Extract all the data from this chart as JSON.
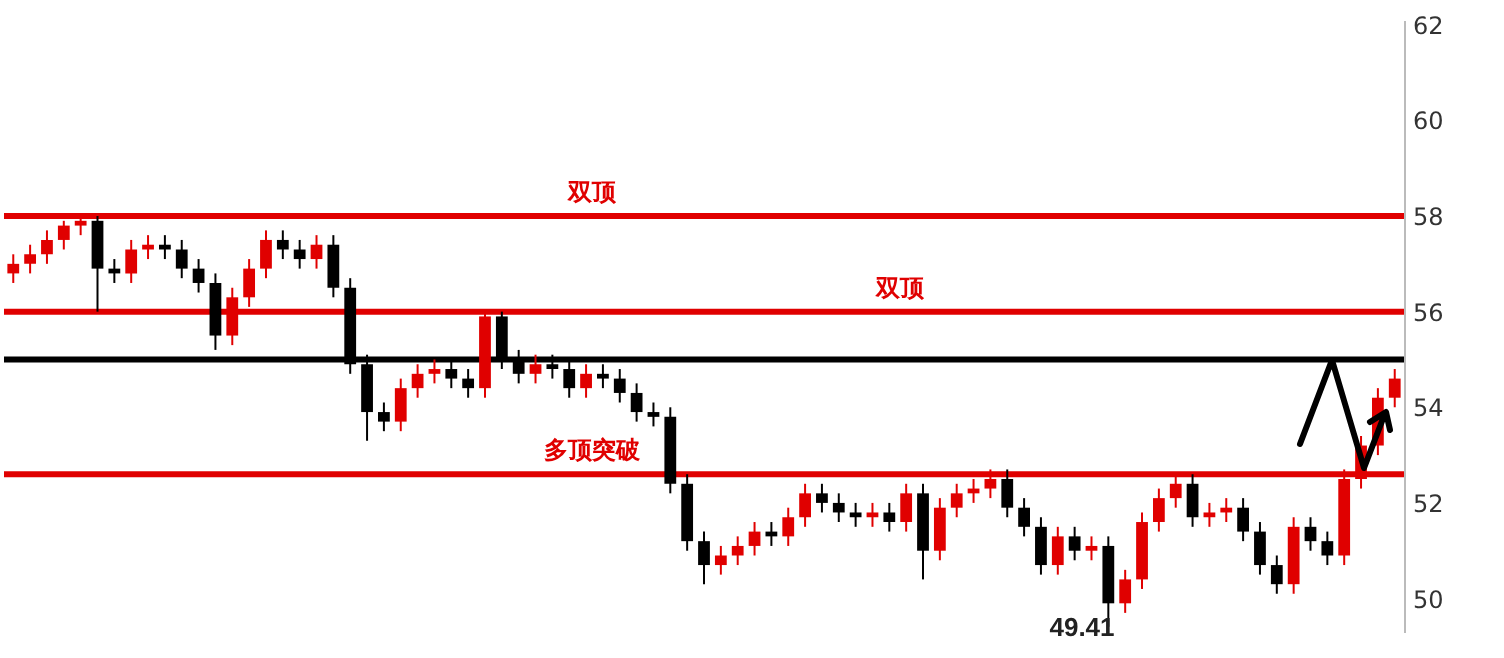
{
  "chart_data": {
    "type": "candlestick",
    "categories": [
      null,
      null,
      null,
      null,
      null,
      null,
      null,
      null,
      null,
      null,
      null,
      null,
      null,
      null,
      null,
      null,
      null,
      null,
      null,
      null,
      null,
      null,
      null,
      null,
      null,
      null,
      null,
      null,
      null,
      null,
      null,
      null,
      null,
      null,
      null,
      null,
      null,
      null,
      null,
      null,
      null,
      null,
      null,
      null,
      null,
      null,
      null,
      null,
      null,
      null,
      null,
      null,
      null,
      null,
      null,
      null,
      null,
      null,
      null,
      null,
      null,
      null,
      null,
      null,
      null,
      null,
      null,
      null,
      null,
      null,
      null,
      null,
      null,
      null,
      null,
      null,
      null,
      null,
      null,
      null,
      null,
      null,
      null
    ],
    "ohlc": [
      [
        56.8,
        57.2,
        56.6,
        57.0
      ],
      [
        57.0,
        57.4,
        56.8,
        57.2
      ],
      [
        57.2,
        57.7,
        57.0,
        57.5
      ],
      [
        57.5,
        57.9,
        57.3,
        57.8
      ],
      [
        57.8,
        58.0,
        57.6,
        57.9
      ],
      [
        57.9,
        58.0,
        56.0,
        56.9
      ],
      [
        56.9,
        57.1,
        56.6,
        56.8
      ],
      [
        56.8,
        57.5,
        56.6,
        57.3
      ],
      [
        57.3,
        57.6,
        57.1,
        57.4
      ],
      [
        57.4,
        57.6,
        57.1,
        57.3
      ],
      [
        57.3,
        57.5,
        56.7,
        56.9
      ],
      [
        56.9,
        57.1,
        56.4,
        56.6
      ],
      [
        56.6,
        56.8,
        55.2,
        55.5
      ],
      [
        55.5,
        56.5,
        55.3,
        56.3
      ],
      [
        56.3,
        57.1,
        56.1,
        56.9
      ],
      [
        56.9,
        57.7,
        56.7,
        57.5
      ],
      [
        57.5,
        57.7,
        57.1,
        57.3
      ],
      [
        57.3,
        57.5,
        56.9,
        57.1
      ],
      [
        57.1,
        57.6,
        56.9,
        57.4
      ],
      [
        57.4,
        57.6,
        56.3,
        56.5
      ],
      [
        56.5,
        56.7,
        54.7,
        54.9
      ],
      [
        54.9,
        55.1,
        53.3,
        53.9
      ],
      [
        53.9,
        54.1,
        53.5,
        53.7
      ],
      [
        53.7,
        54.6,
        53.5,
        54.4
      ],
      [
        54.4,
        54.9,
        54.2,
        54.7
      ],
      [
        54.7,
        55.0,
        54.5,
        54.8
      ],
      [
        54.8,
        55.0,
        54.4,
        54.6
      ],
      [
        54.6,
        54.8,
        54.2,
        54.4
      ],
      [
        54.4,
        56.0,
        54.2,
        55.9
      ],
      [
        55.9,
        56.0,
        54.8,
        55.0
      ],
      [
        55.0,
        55.2,
        54.5,
        54.7
      ],
      [
        54.7,
        55.1,
        54.5,
        54.9
      ],
      [
        54.9,
        55.1,
        54.6,
        54.8
      ],
      [
        54.8,
        55.0,
        54.2,
        54.4
      ],
      [
        54.4,
        54.9,
        54.2,
        54.7
      ],
      [
        54.7,
        54.9,
        54.4,
        54.6
      ],
      [
        54.6,
        54.8,
        54.1,
        54.3
      ],
      [
        54.3,
        54.5,
        53.7,
        53.9
      ],
      [
        53.9,
        54.1,
        53.6,
        53.8
      ],
      [
        53.8,
        54.0,
        52.2,
        52.4
      ],
      [
        52.4,
        52.6,
        51.0,
        51.2
      ],
      [
        51.2,
        51.4,
        50.3,
        50.7
      ],
      [
        50.7,
        51.1,
        50.5,
        50.9
      ],
      [
        50.9,
        51.3,
        50.7,
        51.1
      ],
      [
        51.1,
        51.6,
        50.9,
        51.4
      ],
      [
        51.4,
        51.6,
        51.1,
        51.3
      ],
      [
        51.3,
        51.9,
        51.1,
        51.7
      ],
      [
        51.7,
        52.4,
        51.5,
        52.2
      ],
      [
        52.2,
        52.4,
        51.8,
        52.0
      ],
      [
        52.0,
        52.2,
        51.6,
        51.8
      ],
      [
        51.8,
        52.0,
        51.5,
        51.7
      ],
      [
        51.7,
        52.0,
        51.5,
        51.8
      ],
      [
        51.8,
        52.0,
        51.4,
        51.6
      ],
      [
        51.6,
        52.4,
        51.4,
        52.2
      ],
      [
        52.2,
        52.4,
        50.4,
        51.0
      ],
      [
        51.0,
        52.1,
        50.8,
        51.9
      ],
      [
        51.9,
        52.4,
        51.7,
        52.2
      ],
      [
        52.2,
        52.5,
        52.0,
        52.3
      ],
      [
        52.3,
        52.7,
        52.1,
        52.5
      ],
      [
        52.5,
        52.7,
        51.7,
        51.9
      ],
      [
        51.9,
        52.1,
        51.3,
        51.5
      ],
      [
        51.5,
        51.7,
        50.5,
        50.7
      ],
      [
        50.7,
        51.5,
        50.5,
        51.3
      ],
      [
        51.3,
        51.5,
        50.8,
        51.0
      ],
      [
        51.0,
        51.3,
        50.8,
        51.1
      ],
      [
        51.1,
        51.3,
        49.41,
        49.9
      ],
      [
        49.9,
        50.6,
        49.7,
        50.4
      ],
      [
        50.4,
        51.8,
        50.2,
        51.6
      ],
      [
        51.6,
        52.3,
        51.4,
        52.1
      ],
      [
        52.1,
        52.6,
        51.9,
        52.4
      ],
      [
        52.4,
        52.6,
        51.5,
        51.7
      ],
      [
        51.7,
        52.0,
        51.5,
        51.8
      ],
      [
        51.8,
        52.1,
        51.6,
        51.9
      ],
      [
        51.9,
        52.1,
        51.2,
        51.4
      ],
      [
        51.4,
        51.6,
        50.5,
        50.7
      ],
      [
        50.7,
        50.9,
        50.1,
        50.3
      ],
      [
        50.3,
        51.7,
        50.1,
        51.5
      ],
      [
        51.5,
        51.7,
        51.0,
        51.2
      ],
      [
        51.2,
        51.4,
        50.7,
        50.9
      ],
      [
        50.9,
        52.7,
        50.7,
        52.5
      ],
      [
        52.5,
        53.4,
        52.3,
        53.2
      ],
      [
        53.2,
        54.4,
        53.0,
        54.2
      ],
      [
        54.2,
        54.8,
        54.0,
        54.6
      ]
    ],
    "colors": [
      "#e00000",
      "#e00000",
      "#e00000",
      "#e00000",
      "#e00000",
      "#000000",
      "#000000",
      "#e00000",
      "#e00000",
      "#000000",
      "#000000",
      "#000000",
      "#000000",
      "#e00000",
      "#e00000",
      "#e00000",
      "#000000",
      "#000000",
      "#e00000",
      "#000000",
      "#000000",
      "#000000",
      "#000000",
      "#e00000",
      "#e00000",
      "#e00000",
      "#000000",
      "#000000",
      "#e00000",
      "#000000",
      "#000000",
      "#e00000",
      "#000000",
      "#000000",
      "#e00000",
      "#000000",
      "#000000",
      "#000000",
      "#000000",
      "#000000",
      "#000000",
      "#000000",
      "#e00000",
      "#e00000",
      "#e00000",
      "#000000",
      "#e00000",
      "#e00000",
      "#000000",
      "#000000",
      "#000000",
      "#e00000",
      "#000000",
      "#e00000",
      "#000000",
      "#e00000",
      "#e00000",
      "#e00000",
      "#e00000",
      "#000000",
      "#000000",
      "#000000",
      "#e00000",
      "#000000",
      "#e00000",
      "#000000",
      "#e00000",
      "#e00000",
      "#e00000",
      "#e00000",
      "#000000",
      "#e00000",
      "#e00000",
      "#000000",
      "#000000",
      "#000000",
      "#e00000",
      "#000000",
      "#000000",
      "#e00000",
      "#e00000",
      "#e00000",
      "#e00000"
    ],
    "ylim": [
      49.3,
      62.1
    ],
    "yticks": [
      50,
      52,
      54,
      56,
      58,
      60,
      62
    ],
    "tick_labels": "y",
    "grid": false,
    "ref_lines": [
      {
        "axis": "y",
        "value": 58,
        "label": "双顶",
        "color": "#e00000"
      },
      {
        "axis": "y",
        "value": 56,
        "label": "双顶",
        "color": "#e00000"
      },
      {
        "axis": "y",
        "value": 55,
        "label": null,
        "color": "#000000"
      },
      {
        "axis": "y",
        "value": 52.6,
        "label": "多顶突破",
        "color": "#e00000"
      }
    ],
    "annotations": [
      "49.41"
    ]
  }
}
